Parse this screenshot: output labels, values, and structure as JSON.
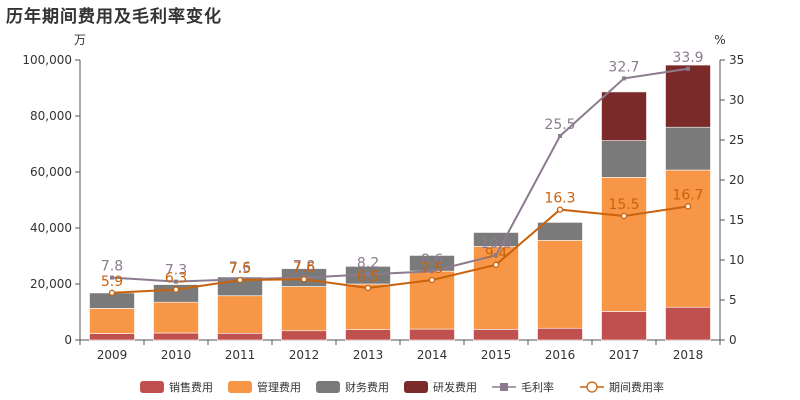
{
  "chart_data": {
    "type": "bar",
    "title": "历年期间费用及毛利率变化",
    "categories": [
      "2009",
      "2010",
      "2011",
      "2012",
      "2013",
      "2014",
      "2015",
      "2016",
      "2017",
      "2018"
    ],
    "y_left": {
      "unit": "万",
      "range": [
        0,
        100000
      ],
      "ticks": [
        "0",
        "20,000",
        "40,000",
        "60,000",
        "80,000",
        "100,000"
      ]
    },
    "y_right": {
      "unit": "%",
      "range": [
        0,
        35
      ],
      "ticks": [
        "0",
        "5",
        "10",
        "15",
        "20",
        "25",
        "30",
        "35"
      ]
    },
    "series": [
      {
        "name": "销售费用",
        "kind": "bar",
        "color": "#c0504d",
        "values": [
          2300,
          2500,
          2400,
          3300,
          3700,
          3900,
          3800,
          4200,
          10200,
          11700
        ]
      },
      {
        "name": "管理费用",
        "kind": "bar",
        "color": "#f79646",
        "values": [
          9000,
          11000,
          13400,
          15800,
          16300,
          20700,
          29600,
          31400,
          47900,
          49000
        ]
      },
      {
        "name": "财务费用",
        "kind": "bar",
        "color": "#7a7a7a",
        "values": [
          5500,
          6300,
          6700,
          6400,
          6300,
          5600,
          5000,
          6400,
          13100,
          15300
        ]
      },
      {
        "name": "研发费用",
        "kind": "bar",
        "color": "#7b2a2a",
        "values": [
          0,
          0,
          0,
          0,
          0,
          0,
          0,
          0,
          17400,
          22200
        ]
      },
      {
        "name": "毛利率",
        "kind": "line",
        "color": "#8c7b8f",
        "values": [
          7.8,
          7.3,
          7.6,
          7.8,
          8.2,
          8.6,
          10.6,
          25.5,
          32.7,
          33.9
        ]
      },
      {
        "name": "期间费用率",
        "kind": "line",
        "color": "#c9620c",
        "values": [
          5.9,
          6.3,
          7.5,
          7.6,
          6.5,
          7.5,
          9.4,
          16.3,
          15.5,
          16.7
        ]
      }
    ],
    "line_labels": {
      "毛利率": [
        "7.8",
        "7.3",
        "7.6",
        "7.8",
        "8.2",
        "8.6",
        "10.6",
        "25.5",
        "32.7",
        "33.9"
      ],
      "期间费用率": [
        "5.9",
        "6.3",
        "7.5",
        "7.6",
        "6.5",
        "7.5",
        "9.4",
        "16.3",
        "15.5",
        "16.7"
      ]
    },
    "legend": {
      "position": "bottom"
    },
    "grid": false
  }
}
